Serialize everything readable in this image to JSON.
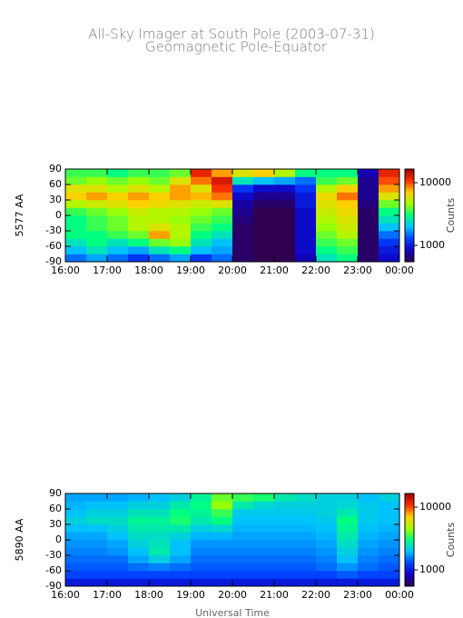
{
  "chart_data": [
    {
      "type": "heatmap",
      "title": "All-Sky Imager at South Pole (2003-07-31)",
      "subtitle": "Geomagnetic Pole-Equator",
      "ylabel": "5577 AA",
      "colorbar_label": "Counts",
      "xbins": [
        16,
        16.5,
        17,
        17.5,
        18,
        18.5,
        19,
        19.5,
        20,
        20.5,
        21,
        21.5,
        22,
        22.5,
        23,
        23.5,
        24
      ],
      "ybins": [
        -90,
        -75,
        -60,
        -45,
        -30,
        -15,
        0,
        15,
        30,
        45,
        60,
        75,
        90
      ],
      "z": [
        [
          1500,
          1800,
          1500,
          1200,
          1500,
          1800,
          1200,
          1500,
          600,
          500,
          500,
          800,
          2500,
          3000,
          600,
          900
        ],
        [
          2000,
          2500,
          2000,
          1800,
          2500,
          3000,
          2000,
          1800,
          600,
          500,
          500,
          900,
          3000,
          3500,
          600,
          1000
        ],
        [
          2500,
          3000,
          2500,
          3000,
          4000,
          4500,
          2500,
          2000,
          600,
          500,
          500,
          900,
          3500,
          4000,
          600,
          1200
        ],
        [
          3000,
          3000,
          3500,
          4000,
          8000,
          5000,
          3000,
          2500,
          600,
          500,
          500,
          900,
          4000,
          5000,
          600,
          1500
        ],
        [
          3000,
          3500,
          4000,
          5000,
          6000,
          5000,
          3500,
          3000,
          600,
          500,
          500,
          900,
          4500,
          5500,
          600,
          2000
        ],
        [
          3000,
          3500,
          4000,
          5000,
          5000,
          4500,
          4000,
          3500,
          650,
          500,
          500,
          900,
          5000,
          6000,
          600,
          2500
        ],
        [
          3500,
          4000,
          4500,
          5500,
          5000,
          5000,
          4500,
          4000,
          700,
          550,
          550,
          900,
          5500,
          6500,
          600,
          3000
        ],
        [
          5000,
          5500,
          6000,
          7000,
          6500,
          6000,
          5500,
          6000,
          750,
          600,
          600,
          1000,
          6000,
          7000,
          650,
          4000
        ],
        [
          7000,
          8000,
          7000,
          8000,
          7000,
          8000,
          7500,
          9000,
          900,
          700,
          700,
          1000,
          6500,
          9000,
          700,
          6000
        ],
        [
          6000,
          6000,
          5000,
          6000,
          5000,
          8000,
          6000,
          11000,
          1200,
          900,
          900,
          1200,
          5000,
          7000,
          700,
          8000
        ],
        [
          4000,
          4500,
          4000,
          4500,
          4000,
          6000,
          9000,
          13000,
          2500,
          2000,
          1800,
          1500,
          3500,
          4000,
          700,
          10000
        ],
        [
          3500,
          3500,
          3000,
          3500,
          3500,
          4000,
          12000,
          8000,
          6000,
          7000,
          5000,
          3000,
          3000,
          3000,
          800,
          12000
        ]
      ],
      "xlim": [
        16,
        24
      ],
      "xticks": [
        {
          "value": 16,
          "label": "16:00"
        },
        {
          "value": 17,
          "label": "17:00"
        },
        {
          "value": 18,
          "label": "18:00"
        },
        {
          "value": 19,
          "label": "19:00"
        },
        {
          "value": 20,
          "label": "20:00"
        },
        {
          "value": 21,
          "label": "21:00"
        },
        {
          "value": 22,
          "label": "22:00"
        },
        {
          "value": 23,
          "label": "23:00"
        },
        {
          "value": 24,
          "label": "00:00"
        }
      ],
      "ylim": [
        -90,
        90
      ],
      "yticks": [
        -90,
        -60,
        -30,
        0,
        30,
        60,
        90
      ],
      "zlim": [
        550,
        16500
      ],
      "zticks": [
        1000,
        10000
      ],
      "zscale": "log",
      "colormap": [
        "#300050",
        "#1000c0",
        "#0040ff",
        "#00c0ff",
        "#00ff80",
        "#a0ff00",
        "#ffd000",
        "#ff3000",
        "#a00000"
      ]
    },
    {
      "type": "heatmap",
      "ylabel": "5890 AA",
      "colorbar_label": "Counts",
      "xlabel": "Universal Time",
      "xbins": [
        16,
        16.5,
        17,
        17.5,
        18,
        18.5,
        19,
        19.5,
        20,
        20.5,
        21,
        21.5,
        22,
        22.5,
        23,
        23.5,
        24
      ],
      "ybins": [
        -90,
        -75,
        -60,
        -45,
        -30,
        -15,
        0,
        15,
        30,
        45,
        60,
        75,
        90
      ],
      "z": [
        [
          1000,
          1000,
          1000,
          1000,
          1000,
          1000,
          1000,
          1000,
          1000,
          1000,
          1000,
          1000,
          1000,
          1000,
          1000,
          1000
        ],
        [
          1300,
          1300,
          1300,
          1300,
          1300,
          1300,
          1300,
          1300,
          1300,
          1300,
          1300,
          1300,
          1300,
          1400,
          1300,
          1300
        ],
        [
          1400,
          1400,
          1400,
          1500,
          1600,
          1500,
          1400,
          1400,
          1400,
          1400,
          1400,
          1400,
          1500,
          1700,
          1500,
          1400
        ],
        [
          1500,
          1500,
          1500,
          1800,
          2200,
          1800,
          1500,
          1500,
          1500,
          1500,
          1500,
          1500,
          1600,
          2000,
          1600,
          1500
        ],
        [
          1600,
          1600,
          1700,
          2000,
          2600,
          2000,
          1600,
          1600,
          1600,
          1600,
          1600,
          1600,
          1700,
          2200,
          1700,
          1600
        ],
        [
          1700,
          1700,
          1800,
          2200,
          2500,
          2000,
          1700,
          1700,
          1700,
          1700,
          1700,
          1700,
          1800,
          2400,
          1800,
          1700
        ],
        [
          1800,
          1800,
          2000,
          2400,
          2400,
          2200,
          1900,
          1900,
          1800,
          1800,
          1800,
          1800,
          1900,
          2600,
          1900,
          1800
        ],
        [
          2000,
          2000,
          2200,
          2600,
          2600,
          2600,
          2200,
          2300,
          1900,
          1900,
          1900,
          1900,
          2000,
          2800,
          2000,
          1900
        ],
        [
          2200,
          2400,
          2400,
          2800,
          2800,
          3200,
          2600,
          3000,
          2000,
          2000,
          2000,
          2000,
          2100,
          3000,
          2100,
          2000
        ],
        [
          2000,
          2200,
          2200,
          2500,
          2500,
          3000,
          2800,
          3500,
          2100,
          2100,
          2100,
          2100,
          2200,
          2600,
          2100,
          2000
        ],
        [
          1900,
          2000,
          2000,
          2200,
          2200,
          2600,
          3000,
          4500,
          2600,
          2300,
          2200,
          2200,
          2200,
          2300,
          2100,
          2000
        ],
        [
          1800,
          1800,
          1800,
          1900,
          2000,
          2200,
          2800,
          4000,
          3500,
          3200,
          2600,
          2400,
          2200,
          2200,
          2000,
          2200
        ]
      ],
      "xlim": [
        16,
        24
      ],
      "xticks": [
        {
          "value": 16,
          "label": "16:00"
        },
        {
          "value": 17,
          "label": "17:00"
        },
        {
          "value": 18,
          "label": "18:00"
        },
        {
          "value": 19,
          "label": "19:00"
        },
        {
          "value": 20,
          "label": "20:00"
        },
        {
          "value": 21,
          "label": "21:00"
        },
        {
          "value": 22,
          "label": "22:00"
        },
        {
          "value": 23,
          "label": "23:00"
        },
        {
          "value": 24,
          "label": "00:00"
        }
      ],
      "ylim": [
        -90,
        90
      ],
      "yticks": [
        -90,
        -60,
        -30,
        0,
        30,
        60,
        90
      ],
      "zlim": [
        550,
        16500
      ],
      "zticks": [
        1000,
        10000
      ],
      "zscale": "log",
      "colormap": [
        "#300050",
        "#1000c0",
        "#0040ff",
        "#00c0ff",
        "#00ff80",
        "#a0ff00",
        "#ffd000",
        "#ff3000",
        "#a00000"
      ]
    }
  ]
}
